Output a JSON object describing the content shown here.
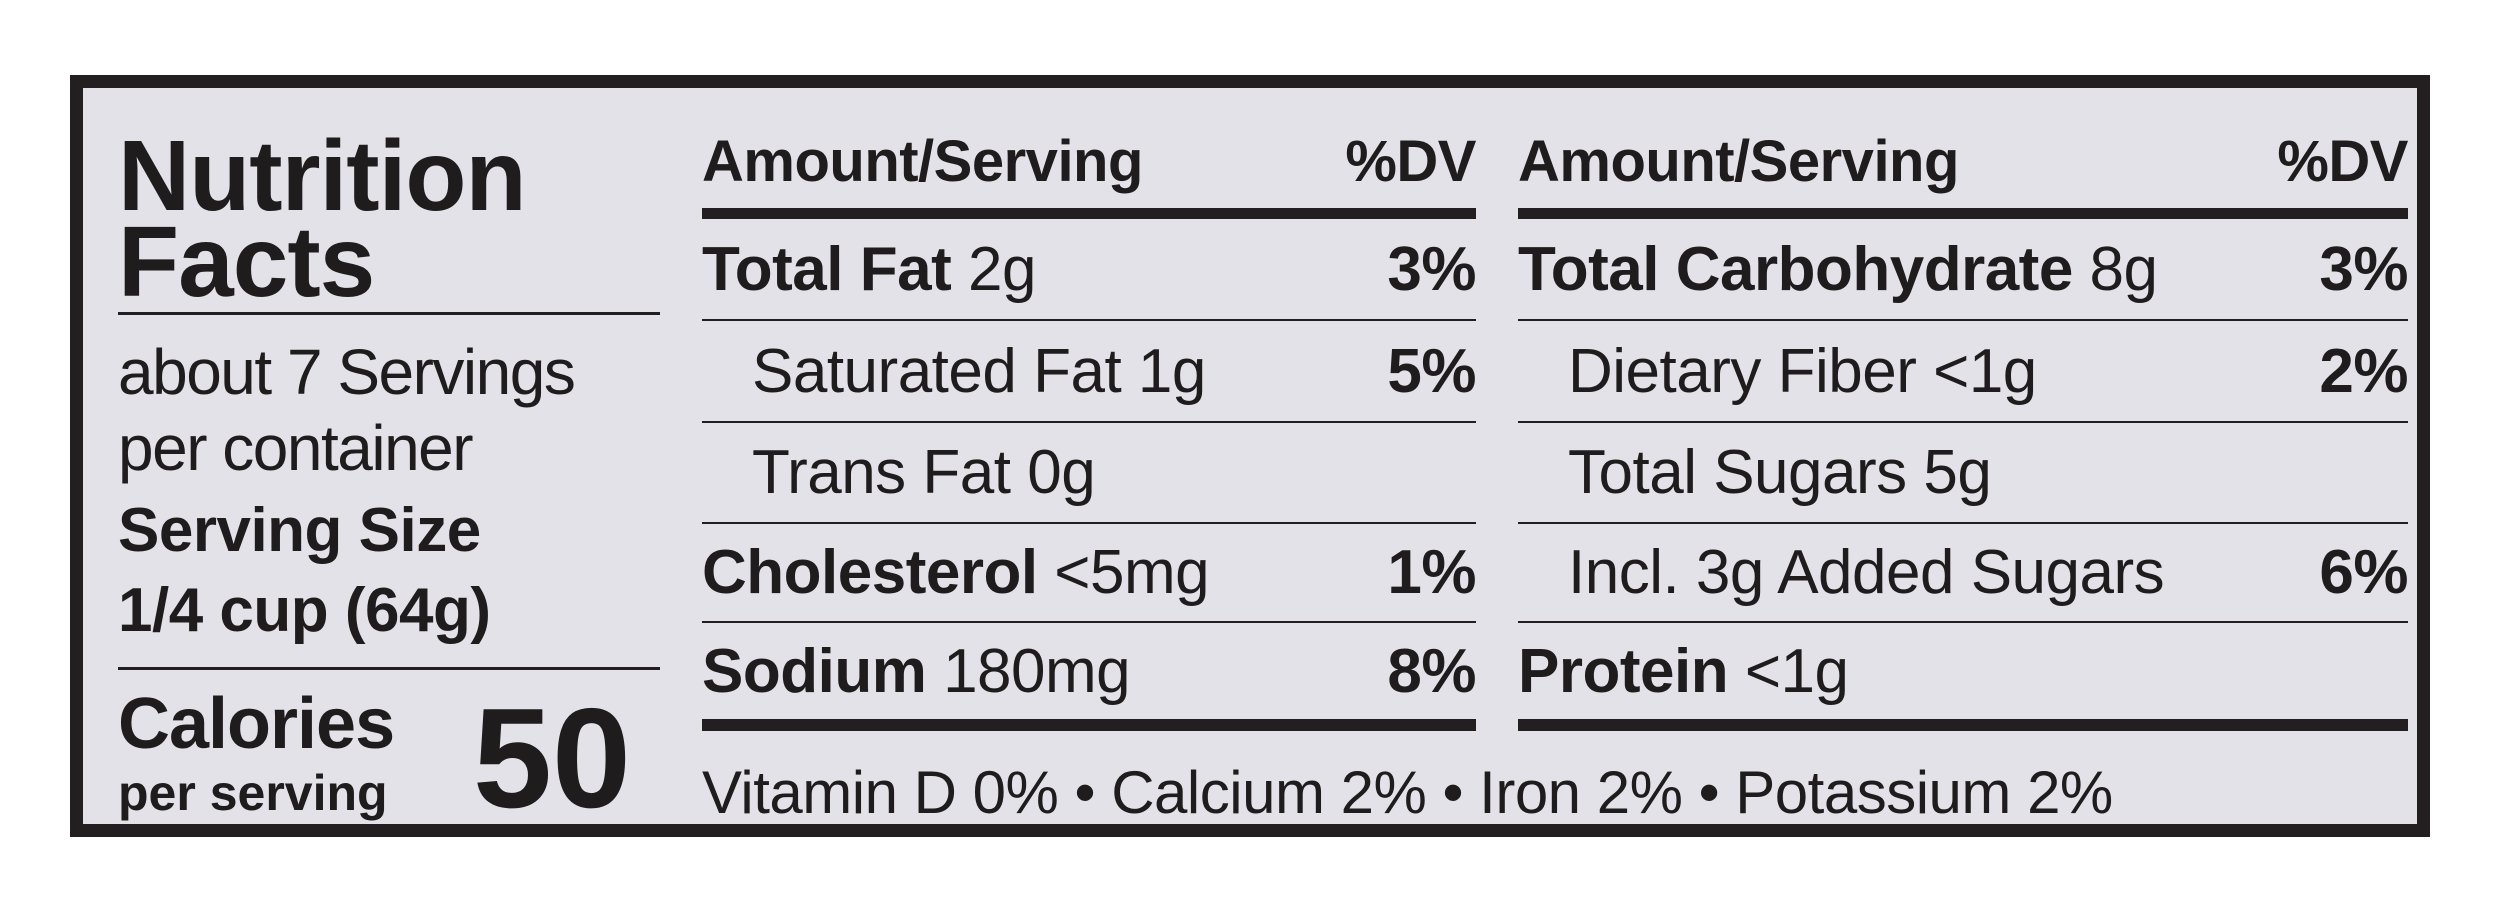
{
  "title_line1": "Nutrition",
  "title_line2": "Facts",
  "servings_line1": "about 7 Servings",
  "servings_line2": "per container",
  "serving_size_label": "Serving Size",
  "serving_size_value": "1/4 cup (64g)",
  "calories_label": "Calories",
  "calories_sub": "per serving",
  "calories_value": "50",
  "columns": [
    {
      "header_amount": "Amount/Serving",
      "header_dv": "%DV",
      "rows": [
        {
          "name": "Total Fat",
          "amount": "2g",
          "dv": "3%",
          "bold": true
        },
        {
          "name": "Saturated Fat",
          "amount": "1g",
          "dv": "5%",
          "bold": false
        },
        {
          "name": "Trans Fat",
          "amount": "0g",
          "dv": "",
          "bold": false
        },
        {
          "name": "Cholesterol",
          "amount": "<5mg",
          "dv": "1%",
          "bold": true
        },
        {
          "name": "Sodium",
          "amount": "180mg",
          "dv": "8%",
          "bold": true
        }
      ]
    },
    {
      "header_amount": "Amount/Serving",
      "header_dv": "%DV",
      "rows": [
        {
          "name": "Total Carbohydrate",
          "amount": "8g",
          "dv": "3%",
          "bold": true
        },
        {
          "name": "Dietary Fiber",
          "amount": "<1g",
          "dv": "2%",
          "bold": false
        },
        {
          "name": "Total Sugars",
          "amount": "5g",
          "dv": "",
          "bold": false
        },
        {
          "name": "Incl. 3g Added Sugars",
          "amount": "",
          "dv": "6%",
          "bold": false
        },
        {
          "name": "Protein",
          "amount": "<1g",
          "dv": "",
          "bold": true
        }
      ]
    }
  ],
  "vitamins_line": "Vitamin D 0% • Calcium 2% • Iron 2% • Potassium 2%"
}
